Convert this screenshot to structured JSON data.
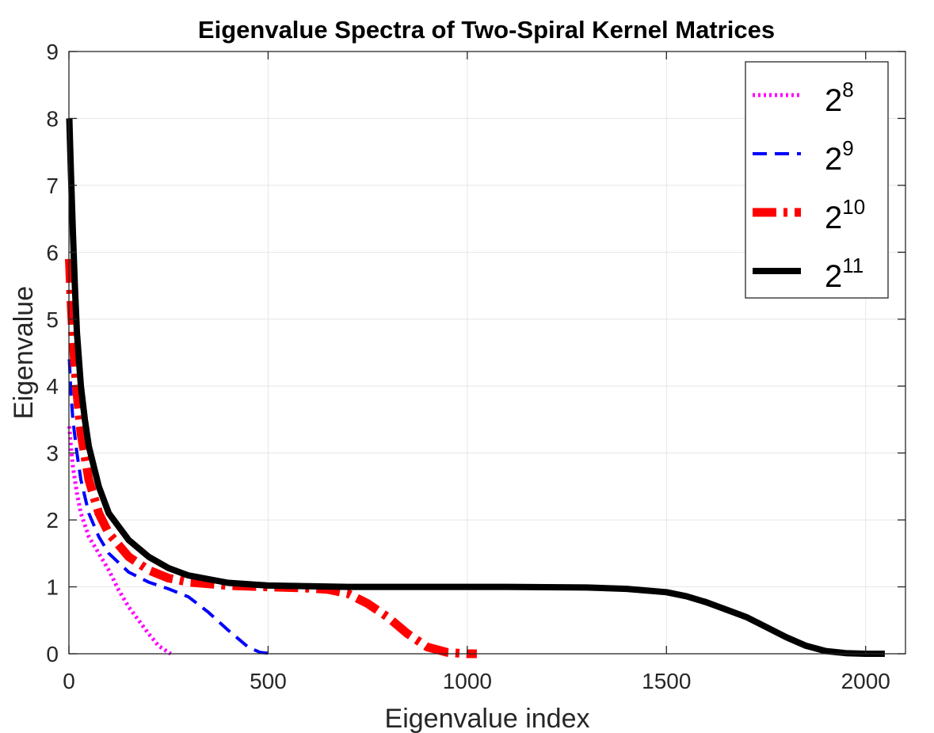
{
  "chart_data": {
    "type": "line",
    "title": "Eigenvalue Spectra of Two-Spiral Kernel Matrices",
    "xlabel": "Eigenvalue index",
    "ylabel": "Eigenvalue",
    "xlim": [
      0,
      2100
    ],
    "ylim": [
      0,
      9
    ],
    "xticks": [
      0,
      500,
      1000,
      1500,
      2000
    ],
    "yticks": [
      0,
      1,
      2,
      3,
      4,
      5,
      6,
      7,
      8,
      9
    ],
    "grid": true,
    "legend_position": "top-right",
    "series": [
      {
        "name_base": "2",
        "name_exp": "8",
        "color": "#ff00ff",
        "style": "dotted",
        "x": [
          1,
          5,
          10,
          20,
          30,
          50,
          75,
          100,
          125,
          150,
          175,
          200,
          225,
          250,
          256
        ],
        "y": [
          3.4,
          3.1,
          2.8,
          2.4,
          2.1,
          1.75,
          1.5,
          1.25,
          0.95,
          0.7,
          0.5,
          0.3,
          0.12,
          0.02,
          0.0
        ]
      },
      {
        "name_base": "2",
        "name_exp": "9",
        "color": "#0000ff",
        "style": "dashed",
        "x": [
          1,
          5,
          10,
          20,
          30,
          50,
          75,
          100,
          150,
          200,
          250,
          300,
          350,
          400,
          450,
          480,
          512
        ],
        "y": [
          4.4,
          3.9,
          3.5,
          3.0,
          2.6,
          2.1,
          1.75,
          1.5,
          1.22,
          1.07,
          0.97,
          0.85,
          0.62,
          0.35,
          0.1,
          0.02,
          0.0
        ]
      },
      {
        "name_base": "2",
        "name_exp": "10",
        "color": "#ff0000",
        "style": "dashdot",
        "x": [
          1,
          5,
          10,
          20,
          30,
          50,
          75,
          100,
          150,
          200,
          250,
          300,
          400,
          500,
          600,
          650,
          700,
          750,
          800,
          850,
          900,
          950,
          1000,
          1024
        ],
        "y": [
          5.9,
          5.3,
          4.7,
          3.9,
          3.3,
          2.6,
          2.1,
          1.8,
          1.45,
          1.25,
          1.13,
          1.07,
          1.02,
          1.0,
          0.98,
          0.96,
          0.9,
          0.75,
          0.55,
          0.3,
          0.1,
          0.02,
          0.0,
          0.0
        ]
      },
      {
        "name_base": "2",
        "name_exp": "11",
        "color": "#000000",
        "style": "solid",
        "x": [
          1,
          5,
          10,
          15,
          20,
          30,
          40,
          50,
          75,
          100,
          150,
          200,
          250,
          300,
          400,
          500,
          700,
          900,
          1100,
          1300,
          1400,
          1500,
          1550,
          1600,
          1650,
          1700,
          1750,
          1800,
          1850,
          1900,
          1950,
          2000,
          2048
        ],
        "y": [
          8.0,
          7.2,
          6.3,
          5.5,
          4.8,
          4.0,
          3.5,
          3.1,
          2.5,
          2.1,
          1.7,
          1.45,
          1.28,
          1.17,
          1.06,
          1.02,
          1.0,
          1.0,
          1.0,
          0.99,
          0.97,
          0.92,
          0.86,
          0.77,
          0.66,
          0.55,
          0.4,
          0.25,
          0.12,
          0.04,
          0.01,
          0.0,
          0.0
        ]
      }
    ]
  }
}
